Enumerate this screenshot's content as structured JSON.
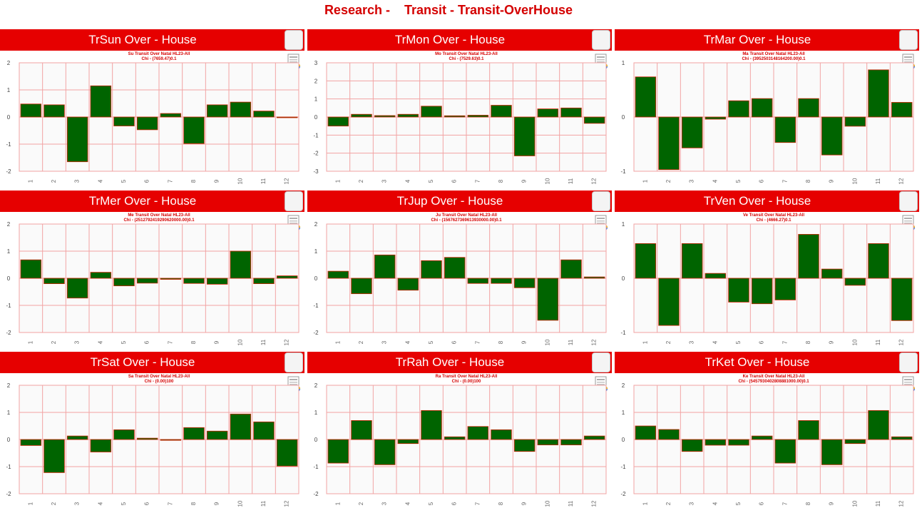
{
  "page": {
    "title": "Research -    Transit - Transit-OverHouse"
  },
  "colors": {
    "header_bg": "#e60000",
    "bar_fill": "#006400",
    "bar_stroke": "#cc2200",
    "grid": "#f2a3a3",
    "plot_bg": "#fafafa"
  },
  "icons": {
    "report": "report-icon"
  },
  "chart_data": [
    {
      "type": "bar",
      "title": "TrSun Over - House",
      "subtitle_1": "Su Transit Over Natal HL23-All",
      "subtitle_2": "Chi - (7659.47)0.1",
      "categories": [
        "1",
        "2",
        "3",
        "4",
        "5",
        "6",
        "7",
        "8",
        "9",
        "10",
        "11",
        "12"
      ],
      "values": [
        0.48,
        0.45,
        -1.65,
        1.15,
        -0.33,
        -0.47,
        0.13,
        -0.98,
        0.45,
        0.55,
        0.22,
        -0.01
      ],
      "ylim": [
        -2,
        2
      ],
      "yticks": [
        "2",
        "1",
        "0",
        "-1",
        "-2"
      ]
    },
    {
      "type": "bar",
      "title": "TrMon Over - House",
      "subtitle_1": "Mo Transit Over Natal HL23-All",
      "subtitle_2": "Chi - (7529.63)0.1",
      "categories": [
        "1",
        "2",
        "3",
        "4",
        "5",
        "6",
        "7",
        "8",
        "9",
        "10",
        "11",
        "12"
      ],
      "values": [
        -0.5,
        0.15,
        0.08,
        0.15,
        0.6,
        0.07,
        0.1,
        0.65,
        -2.15,
        0.45,
        0.5,
        -0.35
      ],
      "ylim": [
        -3,
        3
      ],
      "yticks": [
        "3",
        "2",
        "1",
        "0",
        "-1",
        "-2",
        "-3"
      ]
    },
    {
      "type": "bar",
      "title": "TrMar Over - House",
      "subtitle_1": "Ma Transit Over Natal HL23-All",
      "subtitle_2": "Chi - (3952503148164200.00)0.1",
      "categories": [
        "1",
        "2",
        "3",
        "4",
        "5",
        "6",
        "7",
        "8",
        "9",
        "10",
        "11",
        "12"
      ],
      "values": [
        0.74,
        -0.97,
        -0.57,
        -0.04,
        0.3,
        0.34,
        -0.47,
        0.34,
        -0.7,
        -0.17,
        0.87,
        0.27
      ],
      "ylim": [
        -1,
        1
      ],
      "yticks": [
        "1",
        "0",
        "-1"
      ]
    },
    {
      "type": "bar",
      "title": "TrMer Over - House",
      "subtitle_1": "Me Transit Over Natal HL23-All",
      "subtitle_2": "Chi - (2512792419290620000.00)0.1",
      "categories": [
        "1",
        "2",
        "3",
        "4",
        "5",
        "6",
        "7",
        "8",
        "9",
        "10",
        "11",
        "12"
      ],
      "values": [
        0.68,
        -0.2,
        -0.73,
        0.22,
        -0.28,
        -0.18,
        -0.04,
        -0.19,
        -0.22,
        1.0,
        -0.2,
        0.09
      ],
      "ylim": [
        -2,
        2
      ],
      "yticks": [
        "2",
        "1",
        "0",
        "-1",
        "-2"
      ]
    },
    {
      "type": "bar",
      "title": "TrJup Over - House",
      "subtitle_1": "Ju Transit Over Natal HL23-All",
      "subtitle_2": "Chi - (1567627369613930000.00)0.1",
      "categories": [
        "1",
        "2",
        "3",
        "4",
        "5",
        "6",
        "7",
        "8",
        "9",
        "10",
        "11",
        "12"
      ],
      "values": [
        0.26,
        -0.57,
        0.86,
        -0.44,
        0.65,
        0.77,
        -0.19,
        -0.19,
        -0.35,
        -1.55,
        0.68,
        0.05
      ],
      "ylim": [
        -2,
        2
      ],
      "yticks": [
        "2",
        "1",
        "0",
        "-1",
        "-2"
      ]
    },
    {
      "type": "bar",
      "title": "TrVen Over - House",
      "subtitle_1": "Ve Transit Over Natal HL23-All",
      "subtitle_2": "Chi - (4666.27)0.1",
      "categories": [
        "1",
        "2",
        "3",
        "4",
        "5",
        "6",
        "7",
        "8",
        "9",
        "10",
        "11",
        "12"
      ],
      "values": [
        0.64,
        -0.87,
        0.64,
        0.09,
        -0.44,
        -0.47,
        -0.4,
        0.81,
        0.17,
        -0.13,
        0.64,
        -0.78
      ],
      "ylim": [
        -1,
        1
      ],
      "yticks": [
        "1",
        "0",
        "-1"
      ]
    },
    {
      "type": "bar",
      "title": "TrSat Over - House",
      "subtitle_1": "Sa Transit Over Natal HL23-All",
      "subtitle_2": "Chi - (0.00)100",
      "categories": [
        "1",
        "2",
        "3",
        "4",
        "5",
        "6",
        "7",
        "8",
        "9",
        "10",
        "11",
        "12"
      ],
      "values": [
        -0.22,
        -1.22,
        0.13,
        -0.46,
        0.36,
        0.05,
        -0.03,
        0.44,
        0.31,
        0.94,
        0.65,
        -0.98
      ],
      "ylim": [
        -2,
        2
      ],
      "yticks": [
        "2",
        "1",
        "0",
        "-1",
        "-2"
      ]
    },
    {
      "type": "bar",
      "title": "TrRah Over - House",
      "subtitle_1": "Ra Transit Over Natal HL23-All",
      "subtitle_2": "Chi - (0.00)100",
      "categories": [
        "1",
        "2",
        "3",
        "4",
        "5",
        "6",
        "7",
        "8",
        "9",
        "10",
        "11",
        "12"
      ],
      "values": [
        -0.87,
        0.7,
        -0.93,
        -0.15,
        1.07,
        0.1,
        0.48,
        0.36,
        -0.44,
        -0.2,
        -0.2,
        0.13
      ],
      "ylim": [
        -2,
        2
      ],
      "yticks": [
        "2",
        "1",
        "0",
        "-1",
        "-2"
      ]
    },
    {
      "type": "bar",
      "title": "TrKet Over - House",
      "subtitle_1": "Ke Transit Over Natal HL23-All",
      "subtitle_2": "Chi - (5457930402808881000.00)0.1",
      "categories": [
        "1",
        "2",
        "3",
        "4",
        "5",
        "6",
        "7",
        "8",
        "9",
        "10",
        "11",
        "12"
      ],
      "values": [
        0.5,
        0.37,
        -0.44,
        -0.21,
        -0.21,
        0.13,
        -0.87,
        0.7,
        -0.93,
        -0.15,
        1.07,
        0.1
      ],
      "ylim": [
        -2,
        2
      ],
      "yticks": [
        "2",
        "1",
        "0",
        "-1",
        "-2"
      ]
    }
  ]
}
